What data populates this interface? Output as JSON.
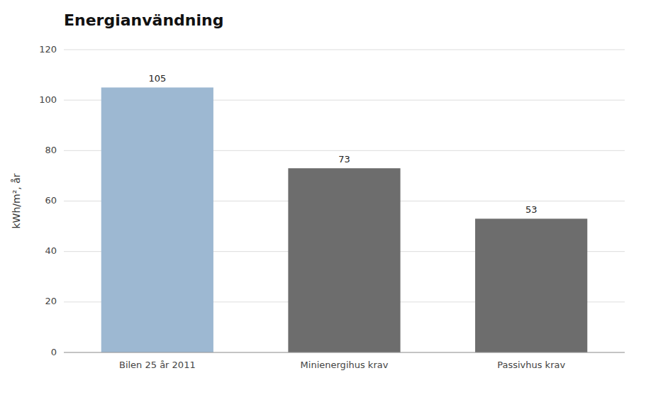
{
  "chart_data": {
    "type": "bar",
    "title": "Energianvändning",
    "categories": [
      "Bilen 25 år 2011",
      "Minienergihus krav",
      "Passivhus krav"
    ],
    "values": [
      105,
      73,
      53
    ],
    "colors": [
      "#9db8d2",
      "#6d6d6d",
      "#6d6d6d"
    ],
    "ylabel": "kWh/m², år",
    "ylim": [
      0,
      120
    ],
    "yticks": [
      0,
      20,
      40,
      60,
      80,
      100,
      120
    ],
    "grid": true,
    "data_labels": true
  }
}
